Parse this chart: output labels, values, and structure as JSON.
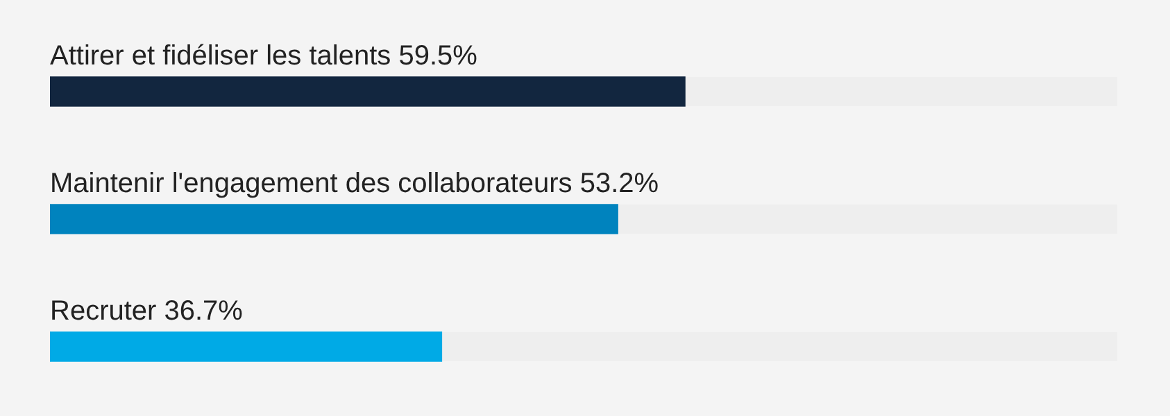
{
  "chart_data": {
    "type": "bar",
    "orientation": "horizontal",
    "categories": [
      "Attirer et fidéliser les talents",
      "Maintenir l'engagement des collaborateurs",
      "Recruter"
    ],
    "values": [
      59.5,
      53.2,
      36.7
    ],
    "colors": [
      "#12263f",
      "#0083be",
      "#00aae6"
    ],
    "value_labels": [
      "59.5%",
      "53.2%",
      "36.7%"
    ],
    "xlim": [
      0,
      100
    ]
  }
}
